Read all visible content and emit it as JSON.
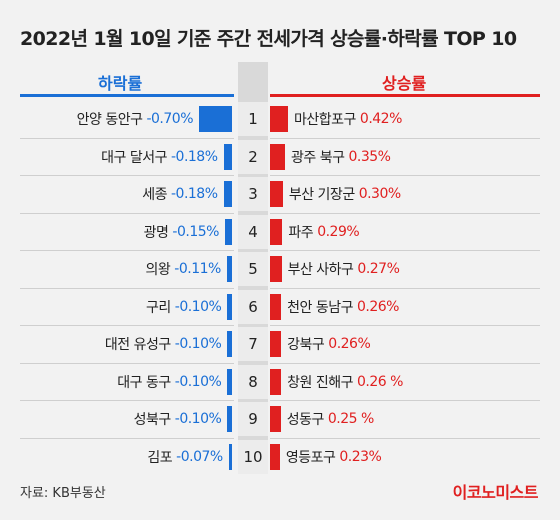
{
  "title": "2022년 1월 10일 기준 주간 전세가격 상승률·하락률 TOP 10",
  "headers": {
    "left": "하락률",
    "right": "상승률"
  },
  "source": "자료: KB부동산",
  "brand": "이코노미스트",
  "colors": {
    "down": "#1a6fd6",
    "up": "#e02020"
  },
  "chart_data": {
    "type": "bar",
    "ranks": [
      "1",
      "2",
      "3",
      "4",
      "5",
      "6",
      "7",
      "8",
      "9",
      "10"
    ],
    "down": [
      {
        "region": "안양 동안구",
        "value": -0.7,
        "label": "-0.70%"
      },
      {
        "region": "대구 달서구",
        "value": -0.18,
        "label": "-0.18%"
      },
      {
        "region": "세종",
        "value": -0.18,
        "label": "-0.18%"
      },
      {
        "region": "광명",
        "value": -0.15,
        "label": "-0.15%"
      },
      {
        "region": "의왕",
        "value": -0.11,
        "label": "-0.11%"
      },
      {
        "region": "구리",
        "value": -0.1,
        "label": "-0.10%"
      },
      {
        "region": "대전 유성구",
        "value": -0.1,
        "label": "-0.10%"
      },
      {
        "region": "대구 동구",
        "value": -0.1,
        "label": "-0.10%"
      },
      {
        "region": "성북구",
        "value": -0.1,
        "label": "-0.10%"
      },
      {
        "region": "김포",
        "value": -0.07,
        "label": "-0.07%"
      }
    ],
    "up": [
      {
        "region": "마산합포구",
        "value": 0.42,
        "label": "0.42%"
      },
      {
        "region": "광주 북구",
        "value": 0.35,
        "label": "0.35%"
      },
      {
        "region": "부산 기장군",
        "value": 0.3,
        "label": "0.30%"
      },
      {
        "region": "파주",
        "value": 0.29,
        "label": "0.29%"
      },
      {
        "region": "부산 사하구",
        "value": 0.27,
        "label": "0.27%"
      },
      {
        "region": "천안 동남구",
        "value": 0.26,
        "label": "0.26%"
      },
      {
        "region": "강북구",
        "value": 0.26,
        "label": "0.26%"
      },
      {
        "region": "창원 진해구",
        "value": 0.26,
        "label": "0.26 %"
      },
      {
        "region": "성동구",
        "value": 0.25,
        "label": "0.25 %"
      },
      {
        "region": "영등포구",
        "value": 0.23,
        "label": "0.23%"
      }
    ]
  }
}
